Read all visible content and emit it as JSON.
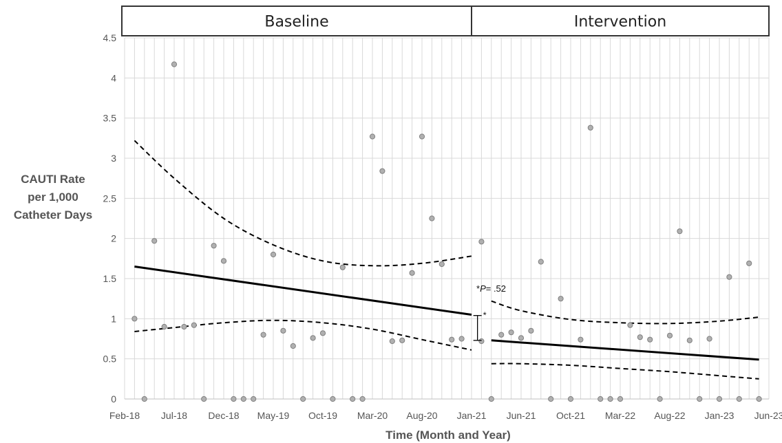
{
  "chart_data": {
    "type": "scatter",
    "phases": [
      {
        "name": "Baseline",
        "x_start": 0,
        "x_end": 35
      },
      {
        "name": "Intervention",
        "x_start": 35,
        "x_end": 64
      }
    ],
    "xlabel": "Time (Month and Year)",
    "ylabel_lines": [
      "CAUTI Rate",
      "per 1,000",
      "Catheter Days"
    ],
    "x_ticks": [
      {
        "x": 0,
        "label": "Feb-18"
      },
      {
        "x": 5,
        "label": "Jul-18"
      },
      {
        "x": 10,
        "label": "Dec-18"
      },
      {
        "x": 15,
        "label": "May-19"
      },
      {
        "x": 20,
        "label": "Oct-19"
      },
      {
        "x": 25,
        "label": "Mar-20"
      },
      {
        "x": 30,
        "label": "Aug-20"
      },
      {
        "x": 35,
        "label": "Jan-21"
      },
      {
        "x": 40,
        "label": "Jun-21"
      },
      {
        "x": 45,
        "label": "Oct-21"
      },
      {
        "x": 50,
        "label": "Mar-22"
      },
      {
        "x": 55,
        "label": "Aug-22"
      },
      {
        "x": 60,
        "label": "Jan-23"
      },
      {
        "x": 65,
        "label": "Jun-23"
      }
    ],
    "y_ticks": [
      "0",
      "0.5",
      "1",
      "1.5",
      "2",
      "2.5",
      "3",
      "3.5",
      "4",
      "4.5"
    ],
    "xlim": [
      0,
      65
    ],
    "ylim": [
      0,
      4.5
    ],
    "grid": true,
    "points": [
      [
        1,
        1.0
      ],
      [
        2,
        0
      ],
      [
        3,
        1.97
      ],
      [
        4,
        0.9
      ],
      [
        5,
        4.17
      ],
      [
        6,
        0.9
      ],
      [
        7,
        0.92
      ],
      [
        8,
        0
      ],
      [
        9,
        1.91
      ],
      [
        10,
        1.72
      ],
      [
        11,
        0
      ],
      [
        12,
        0
      ],
      [
        13,
        0
      ],
      [
        14,
        0.8
      ],
      [
        15,
        1.8
      ],
      [
        16,
        0.85
      ],
      [
        17,
        0.66
      ],
      [
        18,
        0
      ],
      [
        19,
        0.76
      ],
      [
        20,
        0.82
      ],
      [
        21,
        0
      ],
      [
        22,
        1.64
      ],
      [
        23,
        0
      ],
      [
        24,
        0
      ],
      [
        25,
        3.27
      ],
      [
        26,
        2.84
      ],
      [
        27,
        0.72
      ],
      [
        28,
        0.73
      ],
      [
        29,
        1.57
      ],
      [
        30,
        3.27
      ],
      [
        31,
        2.25
      ],
      [
        32,
        1.68
      ],
      [
        33,
        0.74
      ],
      [
        34,
        0.75
      ],
      [
        36,
        1.96
      ],
      [
        36,
        0.72
      ],
      [
        37,
        0
      ],
      [
        38,
        0.8
      ],
      [
        39,
        0.83
      ],
      [
        40,
        0.76
      ],
      [
        41,
        0.85
      ],
      [
        42,
        1.71
      ],
      [
        43,
        0
      ],
      [
        44,
        1.25
      ],
      [
        45,
        0
      ],
      [
        46,
        0.74
      ],
      [
        47,
        3.38
      ],
      [
        48,
        0
      ],
      [
        49,
        0
      ],
      [
        50,
        0
      ],
      [
        51,
        0.92
      ],
      [
        52,
        0.77
      ],
      [
        53,
        0.74
      ],
      [
        54,
        0
      ],
      [
        55,
        0.79
      ],
      [
        56,
        2.09
      ],
      [
        57,
        0.73
      ],
      [
        58,
        0
      ],
      [
        59,
        0.75
      ],
      [
        60,
        0
      ],
      [
        61,
        1.52
      ],
      [
        62,
        0
      ],
      [
        63,
        1.69
      ],
      [
        64,
        0
      ]
    ],
    "series": [
      {
        "style": "solid",
        "segment": "baseline",
        "x": [
          1,
          35
        ],
        "values": [
          1.65,
          1.05
        ]
      },
      {
        "style": "dashed",
        "segment": "baseline",
        "x": [
          1,
          5,
          10,
          15,
          20,
          25,
          30,
          35
        ],
        "values": [
          3.22,
          2.75,
          2.25,
          1.92,
          1.72,
          1.66,
          1.69,
          1.78
        ]
      },
      {
        "style": "dashed",
        "segment": "baseline",
        "x": [
          1,
          5,
          10,
          15,
          20,
          25,
          30,
          35
        ],
        "values": [
          0.84,
          0.89,
          0.95,
          0.98,
          0.95,
          0.87,
          0.74,
          0.61
        ]
      },
      {
        "style": "solid",
        "segment": "intervention",
        "x": [
          37,
          64
        ],
        "values": [
          0.73,
          0.49
        ]
      },
      {
        "style": "dashed",
        "segment": "intervention",
        "x": [
          37,
          40,
          45,
          50,
          55,
          60,
          64
        ],
        "values": [
          1.22,
          1.1,
          0.99,
          0.95,
          0.94,
          0.97,
          1.02
        ]
      },
      {
        "style": "dashed",
        "segment": "intervention",
        "x": [
          37,
          40,
          45,
          50,
          55,
          60,
          64
        ],
        "values": [
          0.44,
          0.44,
          0.42,
          0.38,
          0.34,
          0.29,
          0.25
        ]
      }
    ],
    "annotation": {
      "x": 35.6,
      "y_top": 1.04,
      "y_bottom": 0.73,
      "star": "*",
      "p_prefix": "*",
      "p_italic": "P",
      "p_rest": "= .52"
    }
  }
}
